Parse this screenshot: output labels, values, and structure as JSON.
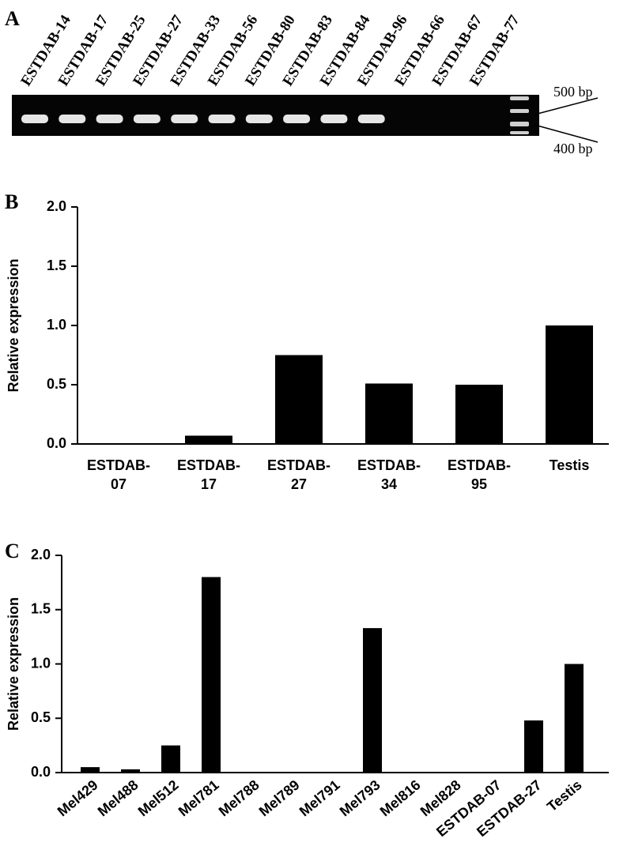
{
  "gel": {
    "panel_label": "A",
    "lanes": [
      {
        "label": "ESTDAB-14",
        "band": true
      },
      {
        "label": "ESTDAB-17",
        "band": true
      },
      {
        "label": "ESTDAB-25",
        "band": true
      },
      {
        "label": "ESTDAB-27",
        "band": true
      },
      {
        "label": "ESTDAB-33",
        "band": true
      },
      {
        "label": "ESTDAB-56",
        "band": true
      },
      {
        "label": "ESTDAB-80",
        "band": true
      },
      {
        "label": "ESTDAB-83",
        "band": true
      },
      {
        "label": "ESTDAB-84",
        "band": true
      },
      {
        "label": "ESTDAB-96",
        "band": true
      },
      {
        "label": "ESTDAB-66",
        "band": false
      },
      {
        "label": "ESTDAB-67",
        "band": false
      },
      {
        "label": "ESTDAB-77",
        "band": false
      }
    ],
    "markers": [
      "500 bp",
      "400 bp"
    ]
  },
  "chart_data": [
    {
      "type": "bar",
      "panel_label": "B",
      "ylabel": "Relative expression",
      "categories": [
        "ESTDAB-07",
        "ESTDAB-17",
        "ESTDAB-27",
        "ESTDAB-34",
        "ESTDAB-95",
        "Testis"
      ],
      "values": [
        0,
        0.07,
        0.75,
        0.51,
        0.5,
        1.0
      ],
      "color": "#000000",
      "ylim": [
        0,
        2
      ],
      "yticks": [
        {
          "value": 0,
          "label": "0.0"
        },
        {
          "value": 0.5,
          "label": "0.5"
        },
        {
          "value": 1,
          "label": "1.0"
        },
        {
          "value": 1.5,
          "label": "1.5"
        },
        {
          "value": 2,
          "label": "2.0"
        }
      ]
    },
    {
      "type": "bar",
      "panel_label": "C",
      "ylabel": "Relative expression",
      "categories": [
        "Mel429",
        "Mel488",
        "Mel512",
        "Mel781",
        "Mel788",
        "Mel789",
        "Mel791",
        "Mel793",
        "Mel816",
        "Mel828",
        "ESTDAB-07",
        "ESTDAB-27",
        "Testis"
      ],
      "values": [
        0.05,
        0.03,
        0.25,
        1.8,
        0,
        0,
        0,
        1.33,
        0,
        0,
        0,
        0.48,
        1.0
      ],
      "color": "#000000",
      "ylim": [
        0,
        2
      ],
      "yticks": [
        {
          "value": 0,
          "label": "0.0"
        },
        {
          "value": 0.5,
          "label": "0.5"
        },
        {
          "value": 1,
          "label": "1.0"
        },
        {
          "value": 1.5,
          "label": "1.5"
        },
        {
          "value": 2,
          "label": "2.0"
        }
      ]
    }
  ]
}
